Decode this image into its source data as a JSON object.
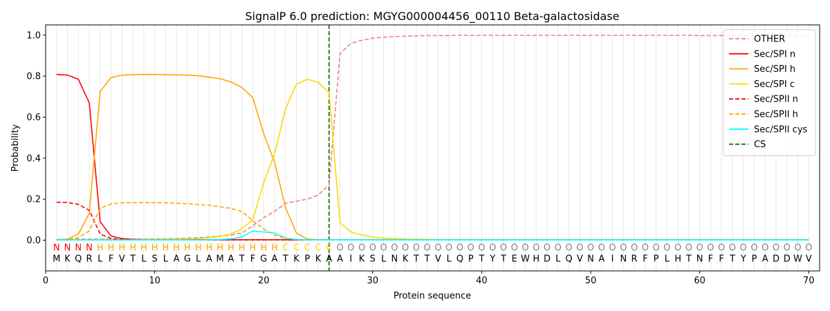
{
  "chart_data": {
    "type": "line",
    "title": "SignalP 6.0 prediction: MGYG000004456_00110 Beta-galactosidase",
    "xlabel": "Protein sequence",
    "ylabel": "Probability",
    "xlim": [
      0,
      71
    ],
    "ylim": [
      -0.15,
      1.05
    ],
    "xticks": [
      0,
      10,
      20,
      30,
      40,
      50,
      60,
      70
    ],
    "yticks": [
      0.0,
      0.2,
      0.4,
      0.6,
      0.8,
      1.0
    ],
    "ytick_labels": [
      "0.0",
      "0.2",
      "0.4",
      "0.6",
      "0.8",
      "1.0"
    ],
    "grid": "vertical lines at each residue",
    "legend_position": "top-right",
    "sequence": [
      "M",
      "K",
      "Q",
      "R",
      "L",
      "F",
      "V",
      "T",
      "L",
      "S",
      "L",
      "A",
      "G",
      "L",
      "A",
      "M",
      "A",
      "T",
      "F",
      "G",
      "A",
      "T",
      "K",
      "P",
      "K",
      "A",
      "A",
      "I",
      "K",
      "S",
      "L",
      "N",
      "K",
      "T",
      "T",
      "V",
      "L",
      "Q",
      "P",
      "T",
      "Y",
      "T",
      "E",
      "W",
      "H",
      "D",
      "L",
      "Q",
      "V",
      "N",
      "A",
      "I",
      "N",
      "R",
      "F",
      "P",
      "L",
      "H",
      "T",
      "N",
      "F",
      "F",
      "T",
      "Y",
      "P",
      "A",
      "D",
      "D",
      "W",
      "V"
    ],
    "region_labels": [
      "N",
      "N",
      "N",
      "N",
      "H",
      "H",
      "H",
      "H",
      "H",
      "H",
      "H",
      "H",
      "H",
      "H",
      "H",
      "H",
      "H",
      "H",
      "H",
      "H",
      "H",
      "C",
      "C",
      "C",
      "C",
      "C",
      "O",
      "O",
      "O",
      "O",
      "O",
      "O",
      "O",
      "O",
      "O",
      "O",
      "O",
      "O",
      "O",
      "O",
      "O",
      "O",
      "O",
      "O",
      "O",
      "O",
      "O",
      "O",
      "O",
      "O",
      "O",
      "O",
      "O",
      "O",
      "O",
      "O",
      "O",
      "O",
      "O",
      "O",
      "O",
      "O",
      "O",
      "O",
      "O",
      "O",
      "O",
      "O",
      "O",
      "O"
    ],
    "region_colors": {
      "N": "#ff0000",
      "H": "#ffa500",
      "C": "#ffd700",
      "O": "#808080"
    },
    "cleavage_site": 26,
    "series": [
      {
        "name": "OTHER",
        "color": "#f08080",
        "dash": "dashed",
        "values": [
          0.003,
          0.003,
          0.005,
          0.005,
          0.005,
          0.005,
          0.005,
          0.005,
          0.005,
          0.006,
          0.007,
          0.008,
          0.01,
          0.012,
          0.015,
          0.02,
          0.025,
          0.035,
          0.07,
          0.11,
          0.14,
          0.18,
          0.19,
          0.2,
          0.22,
          0.27,
          0.91,
          0.96,
          0.975,
          0.985,
          0.99,
          0.993,
          0.995,
          0.997,
          0.998,
          0.998,
          0.998,
          0.999,
          0.999,
          0.999,
          0.999,
          0.999,
          0.999,
          0.999,
          0.999,
          0.999,
          0.999,
          0.999,
          0.999,
          0.999,
          0.999,
          0.999,
          0.999,
          0.999,
          0.999,
          0.999,
          0.999,
          0.999,
          0.999,
          0.998,
          0.998,
          0.998,
          0.998,
          0.998,
          0.998,
          0.998,
          0.998,
          0.998,
          0.998,
          0.998
        ]
      },
      {
        "name": "Sec/SPI n",
        "color": "#ff0000",
        "dash": "solid",
        "values": [
          0.808,
          0.805,
          0.785,
          0.67,
          0.09,
          0.02,
          0.008,
          0.004,
          0.003,
          0.002,
          0.002,
          0.002,
          0.002,
          0.002,
          0.002,
          0.002,
          0.002,
          0.002,
          0.002,
          0.002,
          0.002,
          0.002,
          0.001,
          0.001,
          0.001,
          0.001,
          0.001,
          0.001,
          0.001,
          0.001,
          0.001,
          0.001,
          0.001,
          0.001,
          0.001,
          0.001,
          0.001,
          0.001,
          0.001,
          0.001,
          0.001,
          0.001,
          0.001,
          0.001,
          0.001,
          0.001,
          0.001,
          0.001,
          0.001,
          0.001,
          0.001,
          0.001,
          0.001,
          0.001,
          0.001,
          0.001,
          0.001,
          0.001,
          0.001,
          0.001,
          0.001,
          0.001,
          0.001,
          0.001,
          0.001,
          0.001,
          0.001,
          0.001,
          0.001,
          0.001
        ]
      },
      {
        "name": "Sec/SPI h",
        "color": "#ffa500",
        "dash": "solid",
        "values": [
          0.002,
          0.005,
          0.03,
          0.13,
          0.725,
          0.793,
          0.805,
          0.807,
          0.808,
          0.808,
          0.807,
          0.806,
          0.805,
          0.802,
          0.795,
          0.787,
          0.772,
          0.745,
          0.695,
          0.52,
          0.38,
          0.16,
          0.035,
          0.005,
          0.002,
          0.001,
          0.001,
          0.001,
          0.001,
          0.001,
          0.001,
          0.001,
          0.001,
          0.001,
          0.001,
          0.001,
          0.001,
          0.001,
          0.001,
          0.001,
          0.001,
          0.001,
          0.001,
          0.001,
          0.001,
          0.001,
          0.001,
          0.001,
          0.001,
          0.001,
          0.001,
          0.001,
          0.001,
          0.001,
          0.001,
          0.001,
          0.001,
          0.001,
          0.001,
          0.001,
          0.001,
          0.001,
          0.001,
          0.001,
          0.001,
          0.001,
          0.001,
          0.001,
          0.001,
          0.001
        ]
      },
      {
        "name": "Sec/SPI c",
        "color": "#ffd700",
        "dash": "solid",
        "values": [
          0.001,
          0.001,
          0.001,
          0.001,
          0.002,
          0.002,
          0.002,
          0.002,
          0.003,
          0.003,
          0.004,
          0.005,
          0.006,
          0.008,
          0.012,
          0.018,
          0.03,
          0.055,
          0.1,
          0.28,
          0.42,
          0.64,
          0.76,
          0.785,
          0.77,
          0.72,
          0.085,
          0.04,
          0.025,
          0.015,
          0.01,
          0.007,
          0.005,
          0.004,
          0.003,
          0.002,
          0.002,
          0.002,
          0.002,
          0.002,
          0.002,
          0.002,
          0.002,
          0.002,
          0.002,
          0.002,
          0.002,
          0.002,
          0.002,
          0.002,
          0.002,
          0.002,
          0.002,
          0.002,
          0.002,
          0.002,
          0.002,
          0.002,
          0.002,
          0.002,
          0.002,
          0.002,
          0.002,
          0.002,
          0.002,
          0.002,
          0.002,
          0.002,
          0.002,
          0.002
        ]
      },
      {
        "name": "Sec/SPII n",
        "color": "#ff0000",
        "dash": "dashed",
        "values": [
          0.185,
          0.184,
          0.175,
          0.145,
          0.03,
          0.008,
          0.003,
          0.002,
          0.001,
          0.001,
          0.001,
          0.001,
          0.001,
          0.001,
          0.001,
          0.001,
          0.001,
          0.001,
          0.001,
          0.001,
          0.001,
          0.001,
          0.001,
          0.001,
          0.001,
          0.001,
          0.001,
          0.001,
          0.001,
          0.001,
          0.001,
          0.001,
          0.001,
          0.001,
          0.001,
          0.001,
          0.001,
          0.001,
          0.001,
          0.001,
          0.001,
          0.001,
          0.001,
          0.001,
          0.001,
          0.001,
          0.001,
          0.001,
          0.001,
          0.001,
          0.001,
          0.001,
          0.001,
          0.001,
          0.001,
          0.001,
          0.001,
          0.001,
          0.001,
          0.001,
          0.001,
          0.001,
          0.001,
          0.001,
          0.001,
          0.001,
          0.001,
          0.001,
          0.001,
          0.001
        ]
      },
      {
        "name": "Sec/SPII h",
        "color": "#ffa500",
        "dash": "dashed",
        "values": [
          0.001,
          0.003,
          0.012,
          0.045,
          0.155,
          0.177,
          0.182,
          0.183,
          0.183,
          0.183,
          0.182,
          0.18,
          0.178,
          0.174,
          0.17,
          0.163,
          0.155,
          0.14,
          0.095,
          0.055,
          0.025,
          0.008,
          0.003,
          0.001,
          0.001,
          0.001,
          0.001,
          0.001,
          0.001,
          0.001,
          0.001,
          0.001,
          0.001,
          0.001,
          0.001,
          0.001,
          0.001,
          0.001,
          0.001,
          0.001,
          0.001,
          0.001,
          0.001,
          0.001,
          0.001,
          0.001,
          0.001,
          0.001,
          0.001,
          0.001,
          0.001,
          0.001,
          0.001,
          0.001,
          0.001,
          0.001,
          0.001,
          0.001,
          0.001,
          0.001,
          0.001,
          0.001,
          0.001,
          0.001,
          0.001,
          0.001,
          0.001,
          0.001,
          0.001,
          0.001
        ]
      },
      {
        "name": "Sec/SPII cys",
        "color": "#00ffff",
        "dash": "solid",
        "values": [
          0.001,
          0.001,
          0.001,
          0.001,
          0.001,
          0.001,
          0.001,
          0.001,
          0.001,
          0.001,
          0.001,
          0.001,
          0.001,
          0.001,
          0.002,
          0.003,
          0.006,
          0.015,
          0.045,
          0.04,
          0.035,
          0.01,
          0.003,
          0.002,
          0.001,
          0.001,
          0.001,
          0.001,
          0.001,
          0.001,
          0.001,
          0.001,
          0.001,
          0.001,
          0.001,
          0.001,
          0.001,
          0.001,
          0.001,
          0.001,
          0.001,
          0.001,
          0.001,
          0.001,
          0.001,
          0.001,
          0.001,
          0.001,
          0.001,
          0.001,
          0.001,
          0.001,
          0.001,
          0.001,
          0.001,
          0.001,
          0.001,
          0.001,
          0.001,
          0.001,
          0.001,
          0.001,
          0.001,
          0.001,
          0.001,
          0.001,
          0.001,
          0.001,
          0.001,
          0.001
        ]
      }
    ],
    "cs_marker": {
      "name": "CS",
      "color": "#006400",
      "dash": "dashed"
    }
  }
}
